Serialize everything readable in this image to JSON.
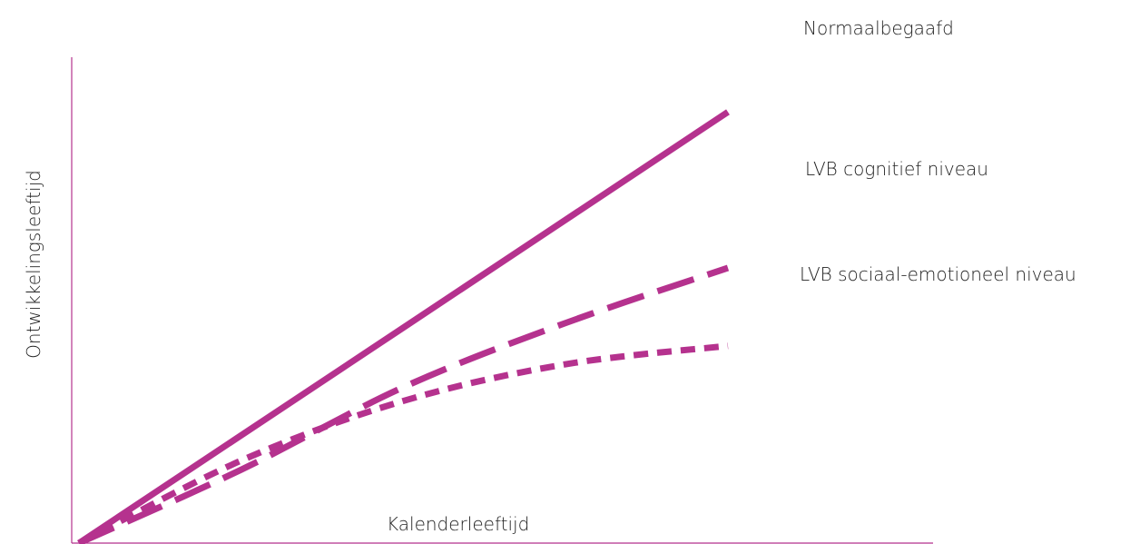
{
  "chart_data": {
    "type": "line",
    "xlabel": "Kalenderleeftijd",
    "ylabel": "Ontwikkelingsleeftijd",
    "xlim": [
      0,
      100
    ],
    "ylim": [
      0,
      100
    ],
    "grid": false,
    "legend_position": "right",
    "line_color": "#b5328e",
    "series": [
      {
        "name": "Normaalbegaafd",
        "style": "solid",
        "x": [
          0,
          100
        ],
        "y": [
          0,
          94
        ]
      },
      {
        "name": "LVB cognitief niveau",
        "style": "long-dash",
        "x": [
          0,
          25,
          50,
          75,
          100
        ],
        "y": [
          0,
          16,
          34,
          48,
          60
        ]
      },
      {
        "name": "LVB sociaal-emotioneel niveau",
        "style": "short-dash",
        "x": [
          0,
          25,
          50,
          75,
          100
        ],
        "y": [
          0,
          18,
          31,
          39,
          43
        ]
      }
    ]
  }
}
